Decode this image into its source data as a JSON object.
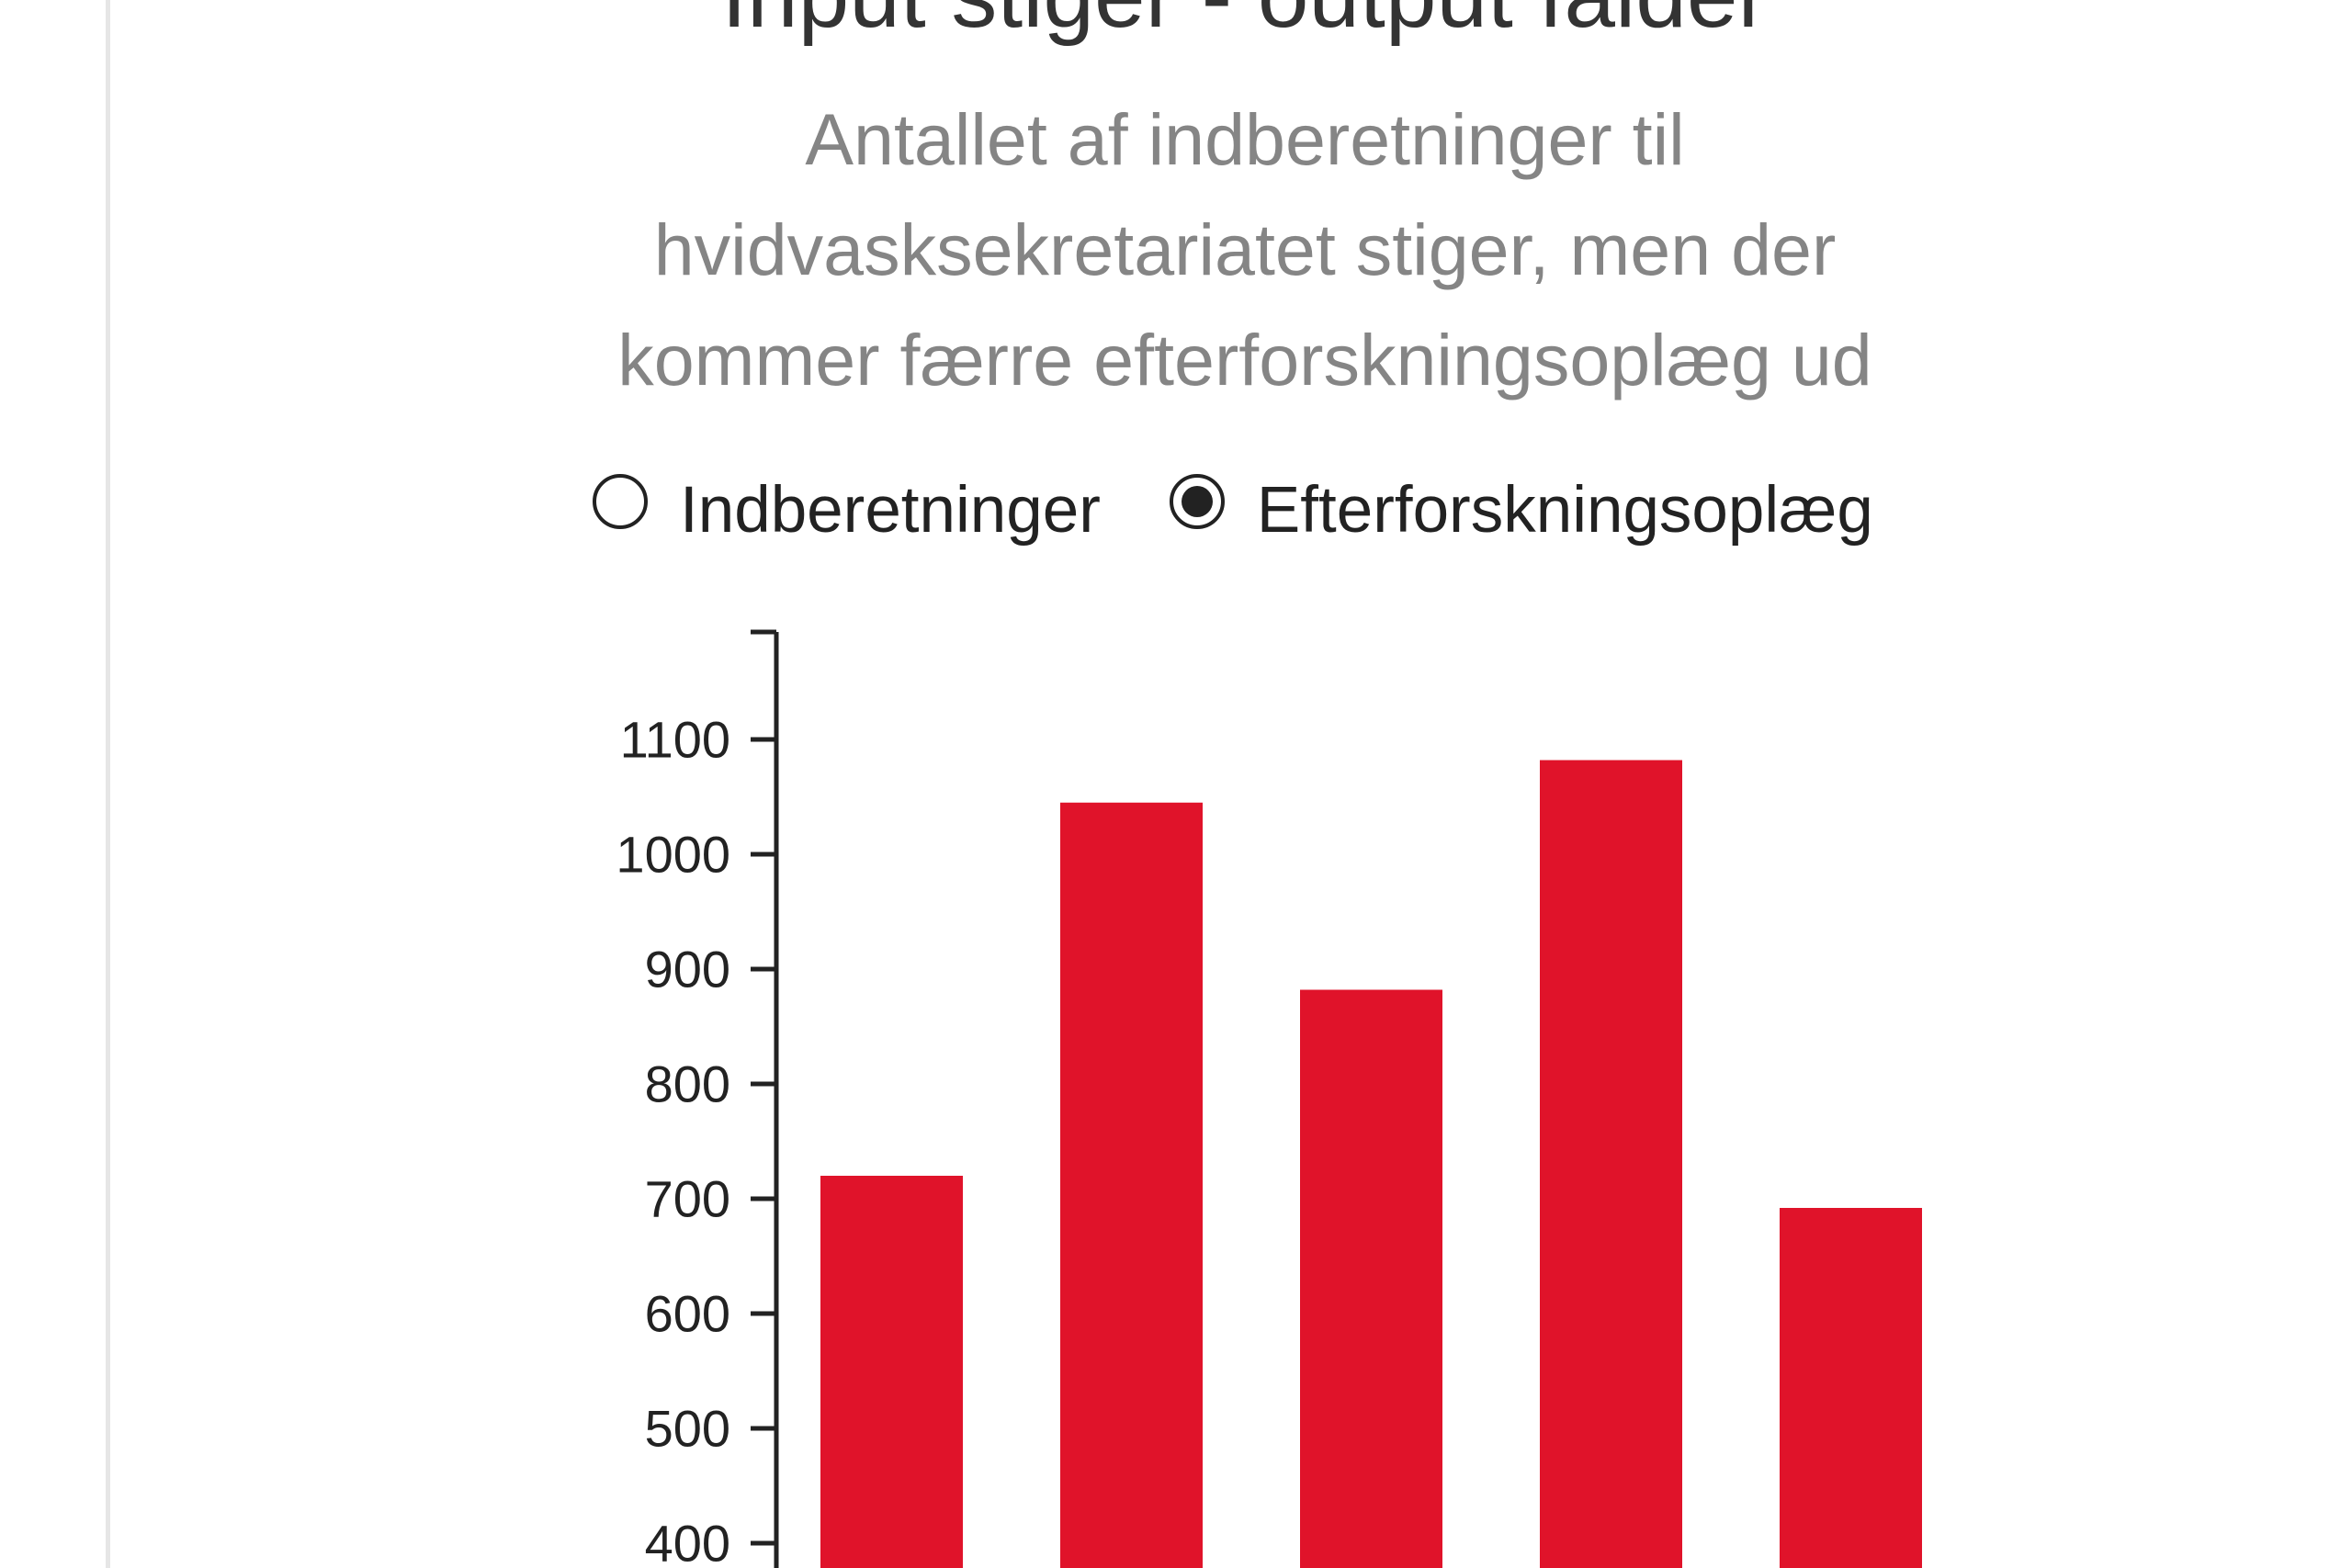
{
  "header": {
    "title": "Input stiger - output falder",
    "subtitle_lines": [
      "Antallet af indberetninger til",
      "hvidvasksekretariatet stiger, men der",
      "kommer færre efterforskningsoplæg ud"
    ]
  },
  "toggle": {
    "options": [
      {
        "label": "Indberetninger",
        "selected": false
      },
      {
        "label": "Efterforskningsoplæg",
        "selected": true
      }
    ]
  },
  "chart_data": {
    "type": "bar",
    "categories": [
      "",
      "",
      "",
      "",
      ""
    ],
    "values": [
      720,
      1045,
      882,
      1082,
      692
    ],
    "ylim": [
      0,
      1180
    ],
    "yticks": [
      400,
      500,
      600,
      700,
      800,
      900,
      1000,
      1100
    ],
    "bar_color": "#e0132a",
    "axis_color": "#222222",
    "grid": false
  },
  "colors": {
    "title": "#333333",
    "subtitle": "#858585",
    "bars": "#e0132a"
  }
}
